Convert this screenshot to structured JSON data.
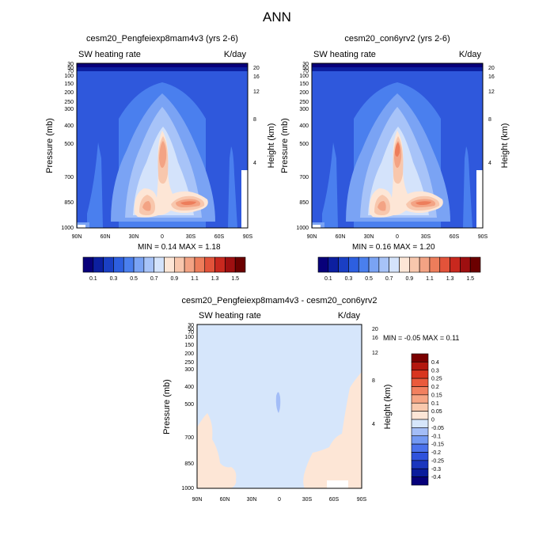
{
  "page_title": "ANN",
  "colors": {
    "contour_palette": [
      "#08007a",
      "#0c1fa0",
      "#1a3fc4",
      "#2d5fe0",
      "#4a7fee",
      "#7aa3f4",
      "#a7c3f8",
      "#d4e3fb",
      "#fde6d6",
      "#f8c7ad",
      "#f3a384",
      "#ed7d5b",
      "#e2533a",
      "#c8281e",
      "#9e0f10",
      "#6b0000"
    ],
    "diff_palette": [
      "#06007a",
      "#0a1c9c",
      "#1a36be",
      "#2f52dc",
      "#4b72ec",
      "#7399f3",
      "#a3bdf7",
      "#d6e6fb",
      "#fde6d6",
      "#f9c9ad",
      "#f6a584",
      "#f2805f",
      "#ea5a3c",
      "#d8351f",
      "#b3170e",
      "#7a0000"
    ]
  },
  "chart_data": [
    {
      "type": "heatmap",
      "title": "cesm20_Pengfeiexp8mam4v3 (yrs 2-6)",
      "left_subtitle": "SW heating rate",
      "right_subtitle": "K/day",
      "ylabel": "Pressure (mb)",
      "ylabel_right": "Height (km)",
      "x_ticks": [
        "90N",
        "60N",
        "30N",
        "0",
        "30S",
        "60S",
        "90S"
      ],
      "y_ticks": [
        "30",
        "50",
        "70",
        "100",
        "150",
        "200",
        "250",
        "300",
        "400",
        "500",
        "700",
        "850",
        "1000"
      ],
      "y_ticks_right": [
        "20",
        "16",
        "12",
        "8",
        "4"
      ],
      "min_label": "MIN =",
      "min_value": "0.14",
      "max_label": "MAX =",
      "max_value": "1.18",
      "colorbar_labels": [
        "0.1",
        "0.3",
        "0.5",
        "0.7",
        "0.9",
        "1.1",
        "1.3",
        "1.5"
      ],
      "zlim": [
        0.14,
        1.18
      ]
    },
    {
      "type": "heatmap",
      "title": "cesm20_con6yrv2 (yrs 2-6)",
      "left_subtitle": "SW heating rate",
      "right_subtitle": "K/day",
      "ylabel": "Pressure (mb)",
      "ylabel_right": "Height (km)",
      "x_ticks": [
        "90N",
        "60N",
        "30N",
        "0",
        "30S",
        "60S",
        "90S"
      ],
      "y_ticks": [
        "30",
        "50",
        "70",
        "100",
        "150",
        "200",
        "250",
        "300",
        "400",
        "500",
        "700",
        "850",
        "1000"
      ],
      "y_ticks_right": [
        "20",
        "16",
        "12",
        "8",
        "4"
      ],
      "min_label": "MIN =",
      "min_value": "0.16",
      "max_label": "MAX =",
      "max_value": "1.20",
      "colorbar_labels": [
        "0.1",
        "0.3",
        "0.5",
        "0.7",
        "0.9",
        "1.1",
        "1.3",
        "1.5"
      ],
      "zlim": [
        0.16,
        1.2
      ]
    },
    {
      "type": "heatmap",
      "title": "cesm20_Pengfeiexp8mam4v3 - cesm20_con6yrv2",
      "left_subtitle": "SW heating rate",
      "right_subtitle": "K/day",
      "ylabel": "Pressure (mb)",
      "ylabel_right": "Height (km)",
      "x_ticks": [
        "90N",
        "60N",
        "30N",
        "0",
        "30S",
        "60S",
        "90S"
      ],
      "y_ticks": [
        "30",
        "50",
        "70",
        "100",
        "150",
        "200",
        "250",
        "300",
        "400",
        "500",
        "700",
        "850",
        "1000"
      ],
      "y_ticks_right": [
        "20",
        "16",
        "12",
        "8",
        "4"
      ],
      "min_label": "MIN =",
      "min_value": "-0.05",
      "max_label": "MAX =",
      "max_value": "0.11",
      "colorbar_labels": [
        "0.4",
        "0.3",
        "0.25",
        "0.2",
        "0.15",
        "0.1",
        "0.05",
        "0",
        "-0.05",
        "-0.1",
        "-0.15",
        "-0.2",
        "-0.25",
        "-0.3",
        "-0.4"
      ],
      "zlim": [
        -0.05,
        0.11
      ]
    }
  ]
}
